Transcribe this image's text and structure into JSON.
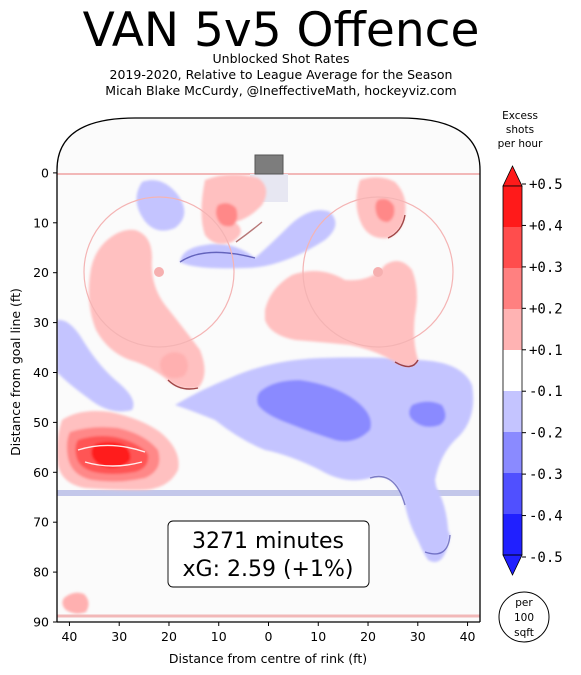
{
  "header": {
    "title": "VAN 5v5 Offence",
    "subtitle_1": "Unblocked Shot Rates",
    "subtitle_2": "2019-2020, Relative to League Average for the Season",
    "subtitle_3": "Micah Blake McCurdy, @IneffectiveMath, hockeyviz.com"
  },
  "annotation": {
    "line_1": "3271 minutes",
    "line_2": "xG: 2.59 (+1%)"
  },
  "legend": {
    "title_1": "Excess",
    "title_2": "shots",
    "title_3": "per hour",
    "unit_1": "per",
    "unit_2": "100",
    "unit_3": "sqft"
  },
  "chart_data": {
    "type": "heatmap",
    "xlabel": "Distance from centre of rink (ft)",
    "ylabel": "Distance from goal line (ft)",
    "xlim": [
      -42.5,
      42.5
    ],
    "ylim": [
      90,
      -11
    ],
    "x_ticks": [
      "40",
      "30",
      "20",
      "10",
      "0",
      "10",
      "20",
      "30",
      "40"
    ],
    "x_tick_values": [
      -40,
      -30,
      -20,
      -10,
      0,
      10,
      20,
      30,
      40
    ],
    "y_ticks": [
      "0",
      "10",
      "20",
      "30",
      "40",
      "50",
      "60",
      "70",
      "80",
      "90"
    ],
    "y_tick_values": [
      0,
      10,
      20,
      30,
      40,
      50,
      60,
      70,
      80,
      90
    ],
    "colorbar": {
      "labels": [
        "+0.5",
        "+0.4",
        "+0.3",
        "+0.2",
        "+0.1",
        "-0.1",
        "-0.2",
        "-0.3",
        "-0.4",
        "-0.5"
      ],
      "colors": [
        "#ff1a1a",
        "#ff4d4d",
        "#ff8080",
        "#ffb3b3",
        "#ffffff",
        "#c4c4ff",
        "#8a8aff",
        "#5050ff",
        "#2020ff"
      ]
    },
    "hot_regions": [
      {
        "x": -33,
        "y": 56,
        "excess": 0.5
      },
      {
        "x": -35,
        "y": 54,
        "excess": 0.2
      },
      {
        "x": -23,
        "y": 30,
        "excess": 0.2
      },
      {
        "x": -8,
        "y": 8,
        "excess": 0.2
      },
      {
        "x": 22,
        "y": 10,
        "excess": 0.2
      },
      {
        "x": 20,
        "y": 32,
        "excess": 0.2
      },
      {
        "x": -18,
        "y": 38,
        "excess": 0.2
      },
      {
        "x": -39,
        "y": 86,
        "excess": 0.2
      }
    ],
    "cold_regions": [
      {
        "x": 8,
        "y": 20,
        "excess": -0.1
      },
      {
        "x": -20,
        "y": 6,
        "excess": -0.1
      },
      {
        "x": 10,
        "y": 48,
        "excess": -0.2
      },
      {
        "x": 32,
        "y": 48,
        "excess": -0.2
      },
      {
        "x": -36,
        "y": 40,
        "excess": -0.1
      },
      {
        "x": 24,
        "y": 65,
        "excess": -0.1
      }
    ]
  }
}
